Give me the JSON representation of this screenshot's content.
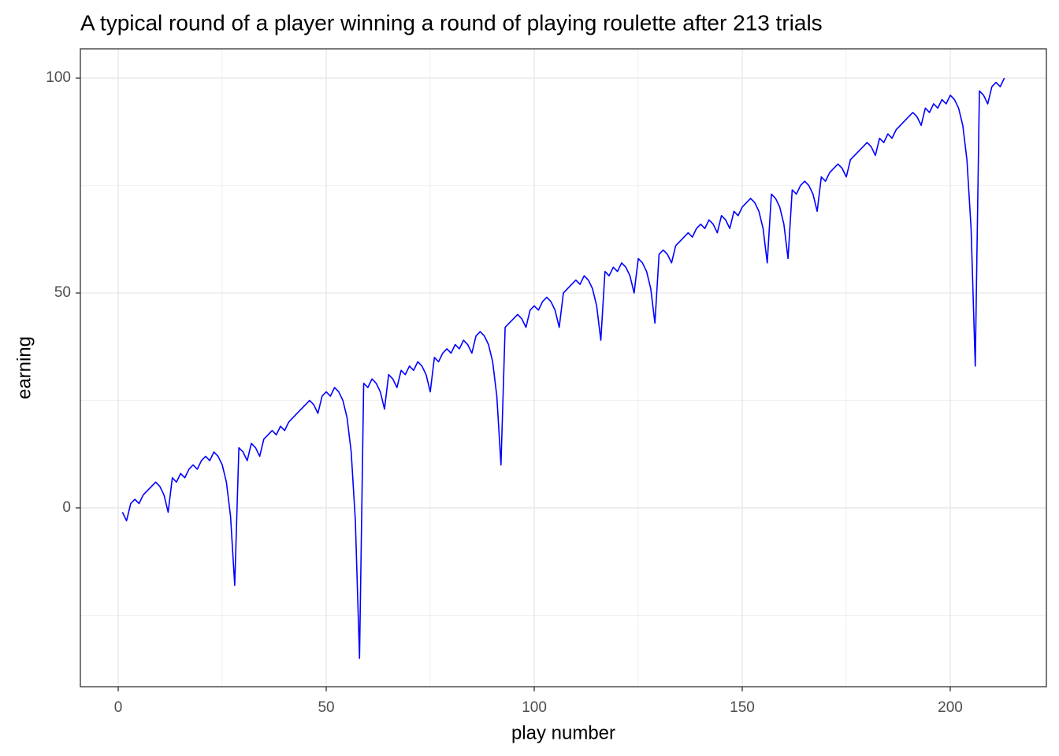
{
  "chart_data": {
    "type": "line",
    "title": "A typical round of a player winning a round of playing roulette after 213 trials",
    "x_label": "play number",
    "y_label": "earning",
    "xlim": [
      -9.1,
      223.1
    ],
    "ylim": [
      -41.6,
      106.8
    ],
    "xticks": [
      0,
      50,
      100,
      150,
      200
    ],
    "yticks": [
      0,
      50,
      100
    ],
    "x_minor_grid": [
      25,
      75,
      125,
      175
    ],
    "y_minor_grid": [
      -25,
      25,
      75
    ],
    "grid": true,
    "series": [
      {
        "color": "#0000ff",
        "x": [
          1,
          2,
          3,
          4,
          5,
          6,
          7,
          8,
          9,
          10,
          11,
          12,
          13,
          14,
          15,
          16,
          17,
          18,
          19,
          20,
          21,
          22,
          23,
          24,
          25,
          26,
          27,
          28,
          29,
          30,
          31,
          32,
          33,
          34,
          35,
          36,
          37,
          38,
          39,
          40,
          41,
          42,
          43,
          44,
          45,
          46,
          47,
          48,
          49,
          50,
          51,
          52,
          53,
          54,
          55,
          56,
          57,
          58,
          59,
          60,
          61,
          62,
          63,
          64,
          65,
          66,
          67,
          68,
          69,
          70,
          71,
          72,
          73,
          74,
          75,
          76,
          77,
          78,
          79,
          80,
          81,
          82,
          83,
          84,
          85,
          86,
          87,
          88,
          89,
          90,
          91,
          92,
          93,
          94,
          95,
          96,
          97,
          98,
          99,
          100,
          101,
          102,
          103,
          104,
          105,
          106,
          107,
          108,
          109,
          110,
          111,
          112,
          113,
          114,
          115,
          116,
          117,
          118,
          119,
          120,
          121,
          122,
          123,
          124,
          125,
          126,
          127,
          128,
          129,
          130,
          131,
          132,
          133,
          134,
          135,
          136,
          137,
          138,
          139,
          140,
          141,
          142,
          143,
          144,
          145,
          146,
          147,
          148,
          149,
          150,
          151,
          152,
          153,
          154,
          155,
          156,
          157,
          158,
          159,
          160,
          161,
          162,
          163,
          164,
          165,
          166,
          167,
          168,
          169,
          170,
          171,
          172,
          173,
          174,
          175,
          176,
          177,
          178,
          179,
          180,
          181,
          182,
          183,
          184,
          185,
          186,
          187,
          188,
          189,
          190,
          191,
          192,
          193,
          194,
          195,
          196,
          197,
          198,
          199,
          200,
          201,
          202,
          203,
          204,
          205,
          206,
          207,
          208,
          209,
          210,
          211,
          212,
          213
        ],
        "values": [
          -1,
          -3,
          1,
          2,
          1,
          3,
          4,
          5,
          6,
          5,
          3,
          -1,
          7,
          6,
          8,
          7,
          9,
          10,
          9,
          11,
          12,
          11,
          13,
          12,
          10,
          6,
          -2,
          -18,
          14,
          13,
          11,
          15,
          14,
          12,
          16,
          17,
          18,
          17,
          19,
          18,
          20,
          21,
          22,
          23,
          24,
          25,
          24,
          22,
          26,
          27,
          26,
          28,
          27,
          25,
          21,
          13,
          -3,
          -35,
          29,
          28,
          30,
          29,
          27,
          23,
          31,
          30,
          28,
          32,
          31,
          33,
          32,
          34,
          33,
          31,
          27,
          35,
          34,
          36,
          37,
          36,
          38,
          37,
          39,
          38,
          36,
          40,
          41,
          40,
          38,
          34,
          26,
          10,
          42,
          43,
          44,
          45,
          44,
          42,
          46,
          47,
          46,
          48,
          49,
          48,
          46,
          42,
          50,
          51,
          52,
          53,
          52,
          54,
          53,
          51,
          47,
          39,
          55,
          54,
          56,
          55,
          57,
          56,
          54,
          50,
          58,
          57,
          55,
          51,
          43,
          59,
          60,
          59,
          57,
          61,
          62,
          63,
          64,
          63,
          65,
          66,
          65,
          67,
          66,
          64,
          68,
          67,
          65,
          69,
          68,
          70,
          71,
          72,
          71,
          69,
          65,
          57,
          73,
          72,
          70,
          66,
          58,
          74,
          73,
          75,
          76,
          75,
          73,
          69,
          77,
          76,
          78,
          79,
          80,
          79,
          77,
          81,
          82,
          83,
          84,
          85,
          84,
          82,
          86,
          85,
          87,
          86,
          88,
          89,
          90,
          91,
          92,
          91,
          89,
          93,
          92,
          94,
          93,
          95,
          94,
          96,
          95,
          93,
          89,
          81,
          65,
          33,
          97,
          96,
          94,
          98,
          99,
          98,
          100
        ]
      }
    ]
  }
}
